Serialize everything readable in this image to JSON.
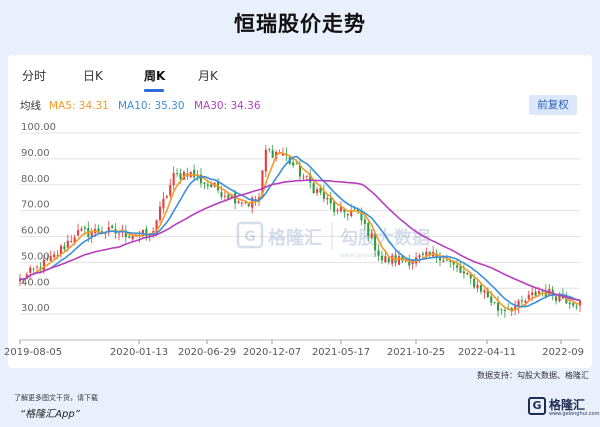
{
  "title": "恒瑞股价走势",
  "tabs": [
    {
      "label": "分时",
      "active": false
    },
    {
      "label": "日K",
      "active": false
    },
    {
      "label": "周K",
      "active": true
    },
    {
      "label": "月K",
      "active": false
    }
  ],
  "legend": {
    "label": "均线",
    "ma5": "MA5: 34.31",
    "ma10": "MA10: 35.30",
    "ma30": "MA30: 34.36"
  },
  "adjust_button": "前复权",
  "watermark": {
    "cn": "格隆汇",
    "mid": "勾股大数据",
    "url": "www.gogudata.com"
  },
  "source": "数据支持：勾股大数据、格隆汇",
  "footer": {
    "small": "了解更多图文干货，请下载",
    "app": "“格隆汇App”",
    "logo": "格隆汇",
    "logo_sub": "www.gelonghui.com"
  },
  "colors": {
    "up": "#e83b3b",
    "down": "#2f9b40",
    "ma5": "#f29b2b",
    "ma10": "#3d8fd9",
    "ma30": "#b73fbf",
    "grid": "#e3e3e3",
    "accent": "#2a6edb"
  },
  "chart_data": {
    "type": "candlestick",
    "title": "恒瑞股价走势",
    "xlabel": "",
    "ylabel": "",
    "ylim": [
      20,
      100
    ],
    "y_ticks": [
      "100.00",
      "90.00",
      "80.00",
      "70.00",
      "60.00",
      "50.00",
      "40.00",
      "30.00"
    ],
    "x_ticks": [
      "2019-08-05",
      "2020-01-13",
      "2020-06-29",
      "2020-12-07",
      "2021-05-17",
      "2021-10-25",
      "2022-04-11",
      "2022-09"
    ],
    "grid": true,
    "series": [
      {
        "name": "MA5",
        "latest": 34.31
      },
      {
        "name": "MA10",
        "latest": 35.3
      },
      {
        "name": "MA30",
        "latest": 34.36
      }
    ],
    "close_anchors": [
      {
        "date": "2019-08-05",
        "close": 43
      },
      {
        "date": "2019-10-14",
        "close": 52
      },
      {
        "date": "2019-11-25",
        "close": 61
      },
      {
        "date": "2020-01-13",
        "close": 62
      },
      {
        "date": "2020-03-23",
        "close": 61
      },
      {
        "date": "2020-04-27",
        "close": 60
      },
      {
        "date": "2020-06-15",
        "close": 83
      },
      {
        "date": "2020-07-13",
        "close": 85
      },
      {
        "date": "2020-08-24",
        "close": 80
      },
      {
        "date": "2020-10-19",
        "close": 75
      },
      {
        "date": "2020-11-16",
        "close": 73
      },
      {
        "date": "2020-12-07",
        "close": 75
      },
      {
        "date": "2020-12-21",
        "close": 93
      },
      {
        "date": "2021-01-25",
        "close": 92
      },
      {
        "date": "2021-03-08",
        "close": 83
      },
      {
        "date": "2021-04-19",
        "close": 75
      },
      {
        "date": "2021-05-17",
        "close": 69
      },
      {
        "date": "2021-06-21",
        "close": 70
      },
      {
        "date": "2021-07-19",
        "close": 62
      },
      {
        "date": "2021-08-16",
        "close": 51
      },
      {
        "date": "2021-10-25",
        "close": 51
      },
      {
        "date": "2021-12-13",
        "close": 53
      },
      {
        "date": "2022-01-24",
        "close": 46
      },
      {
        "date": "2022-03-07",
        "close": 40
      },
      {
        "date": "2022-04-11",
        "close": 32
      },
      {
        "date": "2022-05-23",
        "close": 33
      },
      {
        "date": "2022-07-04",
        "close": 39
      },
      {
        "date": "2022-08-15",
        "close": 37
      },
      {
        "date": "2022-09-26",
        "close": 34
      }
    ]
  }
}
